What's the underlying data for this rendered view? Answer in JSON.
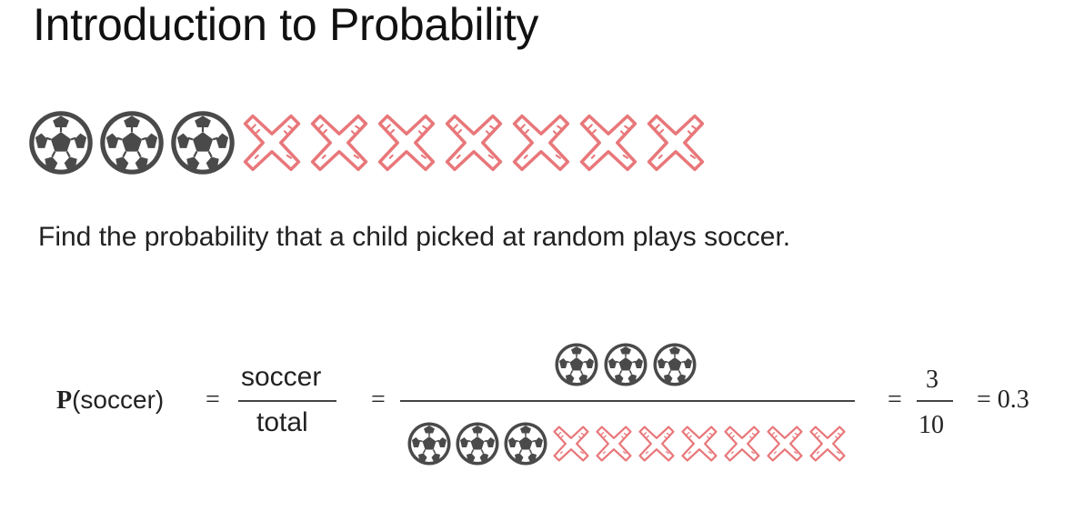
{
  "slide": {
    "title": "Introduction to Probability",
    "question": "Find the probability that a child picked at random plays soccer."
  },
  "population": {
    "soccer_count": 3,
    "other_count": 7,
    "soccer_icon": "soccer-ball-icon",
    "other_icon": "red-cross-icon",
    "cross_color": "#e8777a"
  },
  "formula": {
    "p_label": "P",
    "p_arg": "(soccer)",
    "eq1": "=",
    "word_numerator": "soccer",
    "word_denominator": "total",
    "eq2": "=",
    "eq3": "=",
    "numerator": "3",
    "denominator": "10",
    "result": "= 0.3"
  }
}
